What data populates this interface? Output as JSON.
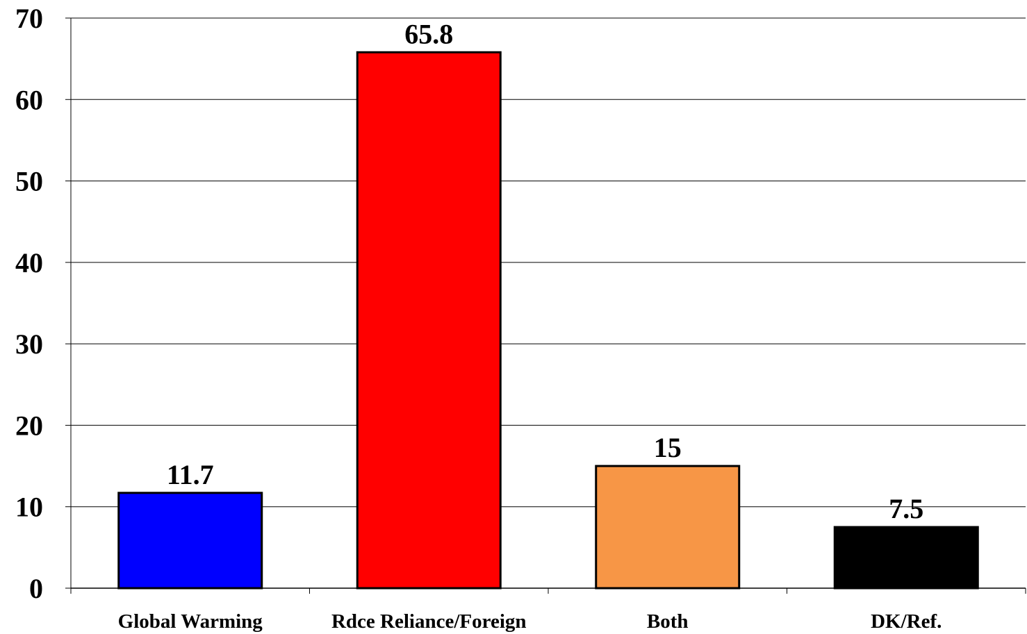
{
  "chart_data": {
    "type": "bar",
    "title": "",
    "xlabel": "",
    "ylabel": "",
    "ylim": [
      0,
      70
    ],
    "yticks": [
      0,
      10,
      20,
      30,
      40,
      50,
      60,
      70
    ],
    "grid": true,
    "legend": "none",
    "categories": [
      "Global Warming",
      "Rdce Reliance/Foreign",
      "Both",
      "DK/Ref."
    ],
    "values": [
      11.7,
      65.8,
      15,
      7.5
    ],
    "data_labels": [
      "11.7",
      "65.8",
      "15",
      "7.5"
    ],
    "colors": [
      "#0000ff",
      "#ff0000",
      "#f79646",
      "#000000"
    ]
  }
}
